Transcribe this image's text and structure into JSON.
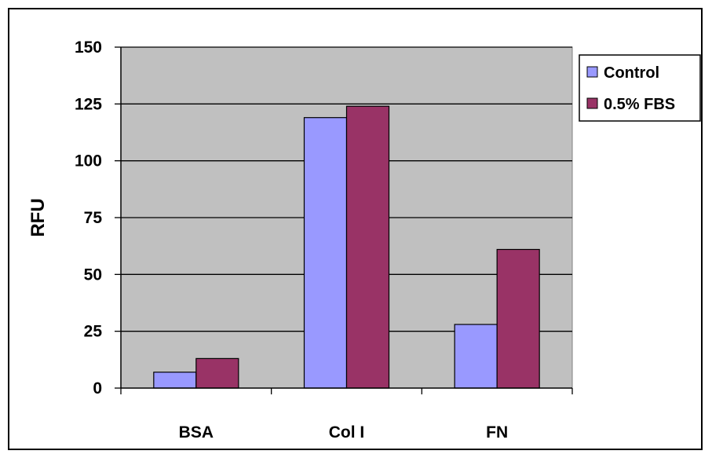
{
  "chart_data": {
    "type": "bar",
    "categories": [
      "BSA",
      "Col I",
      "FN"
    ],
    "series": [
      {
        "name": "Control",
        "values": [
          7,
          119,
          28
        ],
        "color": "#9999ff"
      },
      {
        "name": "0.5% FBS",
        "values": [
          13,
          124,
          61
        ],
        "color": "#993366"
      }
    ],
    "title": "",
    "xlabel": "",
    "ylabel": "RFU",
    "ylim": [
      0,
      150
    ],
    "yticks": [
      "0",
      "25",
      "50",
      "75",
      "100",
      "125",
      "150"
    ],
    "grid": true,
    "plot_background": "#c0c0c0",
    "legend_position": "right"
  }
}
